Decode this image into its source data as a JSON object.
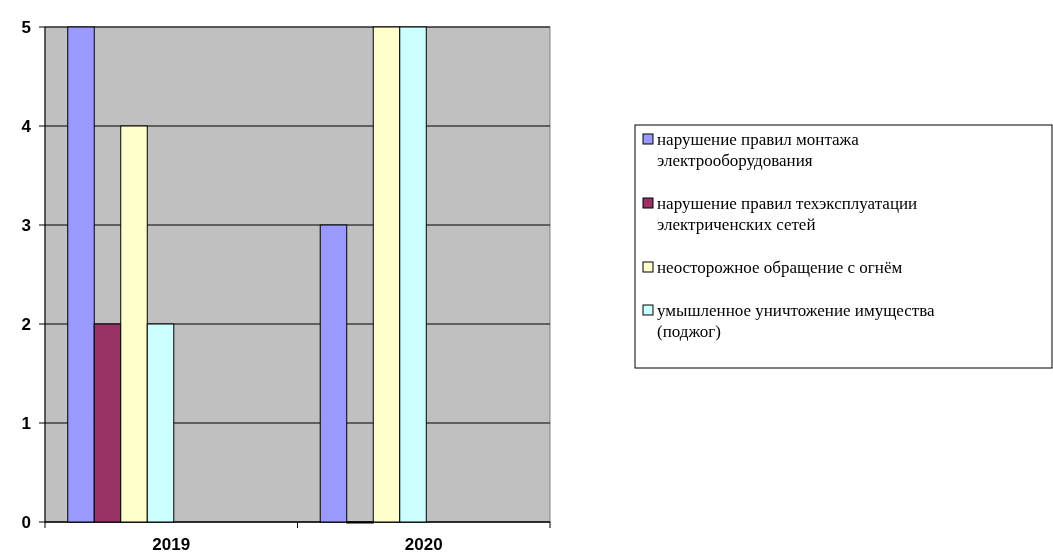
{
  "chart_data": {
    "type": "bar",
    "categories": [
      "2019",
      "2020"
    ],
    "series": [
      {
        "name": "нарушение правил монтажа электрооборудования",
        "color": "#9999ff",
        "values": [
          5,
          3
        ]
      },
      {
        "name": "нарушение правил техэксплуатации электриченских сетей",
        "color": "#993366",
        "values": [
          2,
          0
        ]
      },
      {
        "name": "неосторожное обращение с огнём",
        "color": "#ffffcc",
        "values": [
          4,
          5
        ]
      },
      {
        "name": "умышленное уничтожение имущества (поджог)",
        "color": "#ccffff",
        "values": [
          2,
          5
        ]
      }
    ],
    "ylim": [
      0,
      5
    ],
    "yticks": [
      0,
      1,
      2,
      3,
      4,
      5
    ],
    "grid": "y",
    "legend": "right"
  }
}
